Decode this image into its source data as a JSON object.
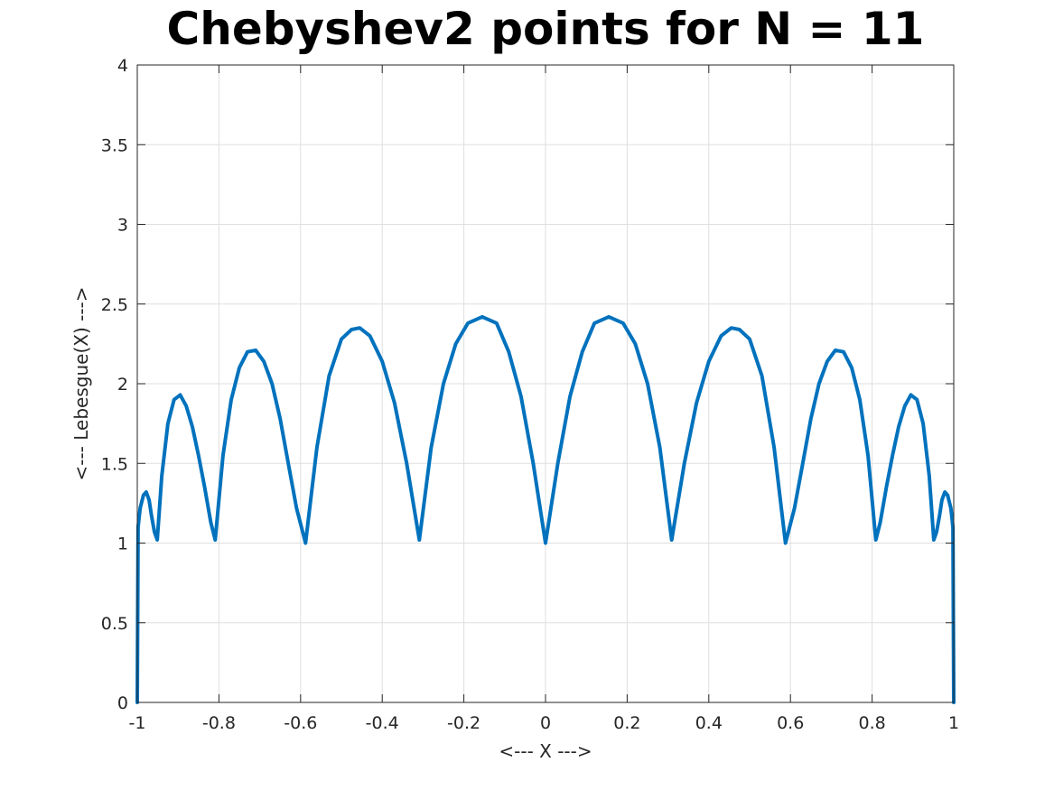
{
  "chart_data": {
    "type": "line",
    "title": "Chebyshev2 points for N = 11",
    "xlabel": "<--- X --->",
    "ylabel": "<--- Lebesgue(X) --->",
    "xlim": [
      -1,
      1
    ],
    "ylim": [
      0,
      4
    ],
    "grid": true,
    "legend": "none",
    "x_ticks": [
      "-1",
      "-0.8",
      "-0.6",
      "-0.4",
      "-0.2",
      "0",
      "0.2",
      "0.4",
      "0.6",
      "0.8",
      "1"
    ],
    "y_ticks": [
      "0",
      "0.5",
      "1",
      "1.5",
      "2",
      "2.5",
      "3",
      "3.5",
      "4"
    ],
    "nodes": [
      -1,
      -0.9511,
      -0.809,
      -0.5878,
      -0.309,
      0,
      0.309,
      0.5878,
      0.809,
      0.9511,
      1
    ],
    "series": [
      {
        "color": "#0072BD",
        "x": [
          -1.0,
          -0.998,
          -0.993,
          -0.985,
          -0.978,
          -0.971,
          -0.965,
          -0.958,
          -0.951,
          -0.94,
          -0.925,
          -0.91,
          -0.895,
          -0.88,
          -0.865,
          -0.85,
          -0.835,
          -0.82,
          -0.809,
          -0.79,
          -0.77,
          -0.75,
          -0.73,
          -0.71,
          -0.69,
          -0.67,
          -0.65,
          -0.63,
          -0.61,
          -0.5878,
          -0.56,
          -0.53,
          -0.5,
          -0.475,
          -0.455,
          -0.43,
          -0.4,
          -0.37,
          -0.34,
          -0.309,
          -0.28,
          -0.25,
          -0.22,
          -0.19,
          -0.155,
          -0.12,
          -0.09,
          -0.06,
          -0.03,
          0.0,
          0.03,
          0.06,
          0.09,
          0.12,
          0.155,
          0.19,
          0.22,
          0.25,
          0.28,
          0.309,
          0.34,
          0.37,
          0.4,
          0.43,
          0.455,
          0.475,
          0.5,
          0.53,
          0.56,
          0.5878,
          0.61,
          0.63,
          0.65,
          0.67,
          0.69,
          0.71,
          0.73,
          0.75,
          0.77,
          0.79,
          0.809,
          0.82,
          0.835,
          0.85,
          0.865,
          0.88,
          0.895,
          0.91,
          0.925,
          0.94,
          0.951,
          0.958,
          0.965,
          0.971,
          0.978,
          0.985,
          0.993,
          0.998,
          1.0
        ],
        "y": [
          0.0,
          1.1,
          1.22,
          1.3,
          1.32,
          1.27,
          1.17,
          1.07,
          1.02,
          1.42,
          1.75,
          1.9,
          1.93,
          1.86,
          1.73,
          1.55,
          1.35,
          1.13,
          1.02,
          1.55,
          1.9,
          2.1,
          2.2,
          2.21,
          2.14,
          2.0,
          1.78,
          1.5,
          1.22,
          1.0,
          1.6,
          2.05,
          2.28,
          2.34,
          2.35,
          2.3,
          2.14,
          1.88,
          1.5,
          1.02,
          1.6,
          2.0,
          2.25,
          2.38,
          2.42,
          2.38,
          2.2,
          1.92,
          1.5,
          1.0,
          1.5,
          1.92,
          2.2,
          2.38,
          2.42,
          2.38,
          2.25,
          2.0,
          1.6,
          1.02,
          1.5,
          1.88,
          2.14,
          2.3,
          2.35,
          2.34,
          2.28,
          2.05,
          1.6,
          1.0,
          1.22,
          1.5,
          1.78,
          2.0,
          2.14,
          2.21,
          2.2,
          2.1,
          1.9,
          1.55,
          1.02,
          1.13,
          1.35,
          1.55,
          1.73,
          1.86,
          1.93,
          1.9,
          1.75,
          1.42,
          1.02,
          1.07,
          1.17,
          1.27,
          1.32,
          1.3,
          1.22,
          1.1,
          0.0
        ]
      }
    ]
  }
}
